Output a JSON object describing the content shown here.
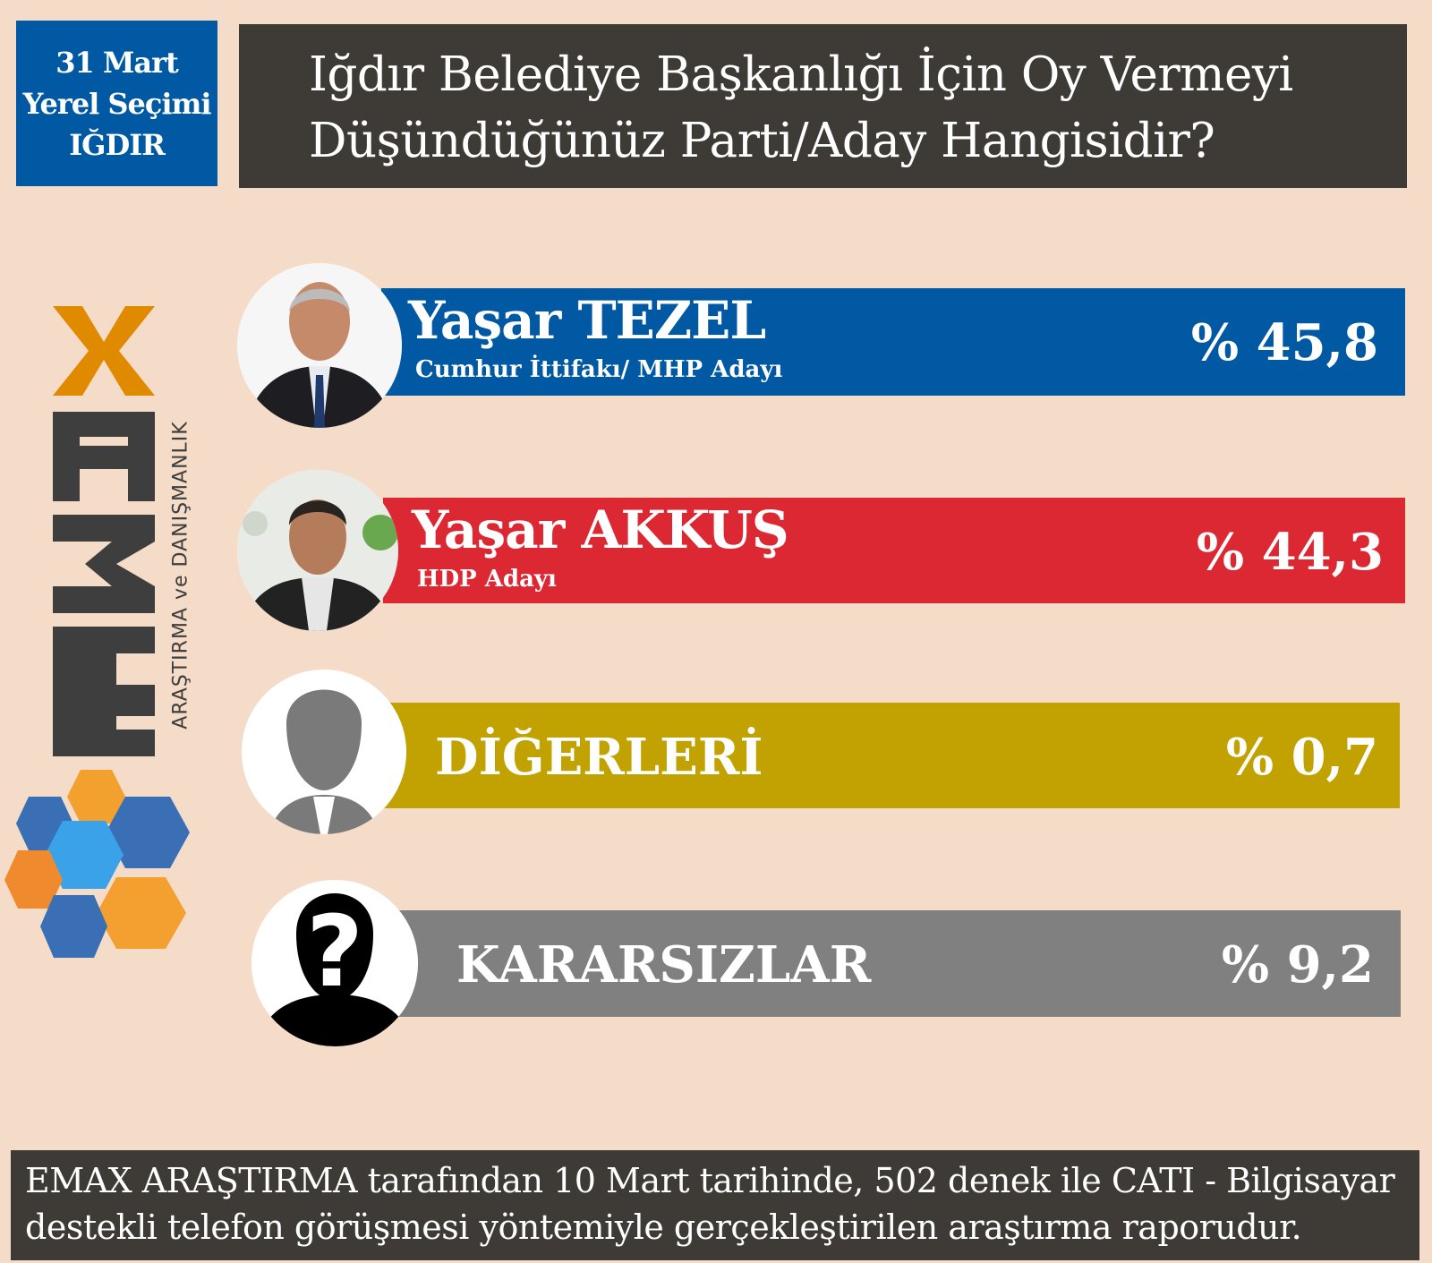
{
  "header": {
    "date_lines": [
      "31 Mart",
      "Yerel Seçimi",
      "IĞDIR"
    ],
    "title_lines": [
      "Iğdır Belediye Başkanlığı İçin Oy Vermeyi",
      "Düşündüğünüz Parti/Aday Hangisidir?"
    ]
  },
  "logo": {
    "text": "EMAX",
    "subtitle": "ARAŞTIRMA ve DANIŞMANLIK",
    "colors": {
      "letters": "#3e3e3e",
      "x": "#e08a00",
      "hex_blue": "#3a6fb5",
      "hex_orange": "#f29a2e"
    }
  },
  "chart_data": {
    "type": "bar",
    "categories": [
      "Yaşar TEZEL",
      "Yaşar AKKUŞ",
      "DİĞERLERİ",
      "KARARSIZLAR"
    ],
    "subtitles": [
      "Cumhur İttifakı/ MHP Adayı",
      "HDP Adayı",
      "",
      ""
    ],
    "values": [
      45.8,
      44.3,
      0.7,
      9.2
    ],
    "labels": [
      "% 45,8",
      "% 44,3",
      "% 0,7",
      "% 9,2"
    ],
    "colors": [
      "#0059a2",
      "#dc2833",
      "#c2a200",
      "#808080"
    ],
    "unit": "%"
  },
  "footer": {
    "lines": [
      "EMAX ARAŞTIRMA tarafından 10 Mart tarihinde, 502 denek ile CATI - Bilgisayar",
      "destekli telefon görüşmesi yöntemiyle gerçekleştirilen araştırma raporudur."
    ]
  }
}
